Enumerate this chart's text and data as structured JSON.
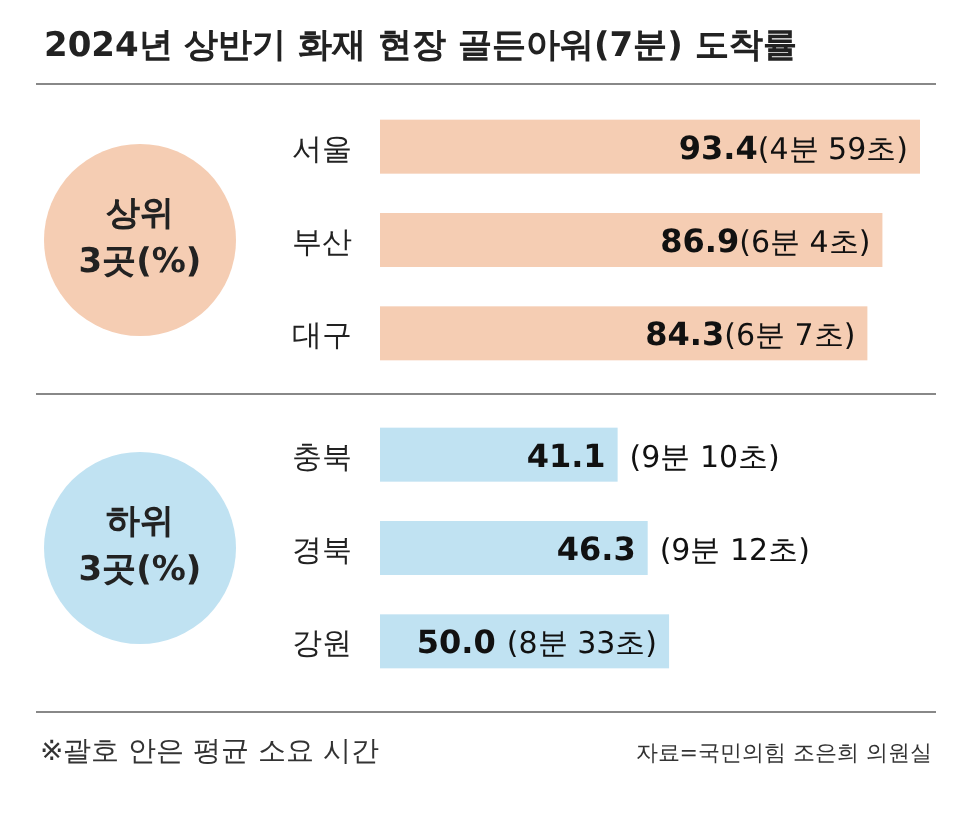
{
  "chart_data": [
    {
      "type": "bar",
      "orientation": "horizontal",
      "title": "2024년 상반기 화재 현장 골든아워(7분) 도착률",
      "ylabel": "상위 3곳(%)",
      "categories": [
        "서울",
        "부산",
        "대구"
      ],
      "values": [
        93.4,
        86.9,
        84.3
      ],
      "color": "#f5cdb3",
      "value_labels": [
        "93.4(4분 59초)",
        "86.9(6분 4초)",
        "84.3(6분 7초)"
      ]
    },
    {
      "type": "bar",
      "orientation": "horizontal",
      "ylabel": "하위 3곳(%)",
      "categories": [
        "충북",
        "경북",
        "강원"
      ],
      "values": [
        41.1,
        46.3,
        50.0
      ],
      "color": "#c0e2f2",
      "value_labels": [
        "41.1 (9분 10초)",
        "46.3 (9분 12초)",
        "50.0 (8분 33초)"
      ],
      "annotations": [
        "※괄호 안은 평균 소요 시간",
        "자료=국민의힘 조은희 의원실"
      ]
    }
  ]
}
